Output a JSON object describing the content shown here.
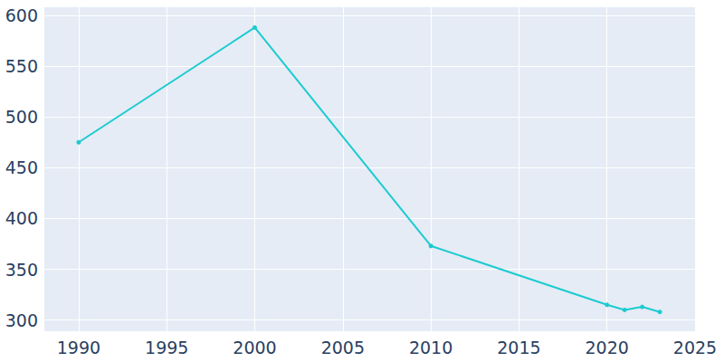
{
  "chart_data": {
    "type": "line",
    "x": [
      1990,
      2000,
      2010,
      2020,
      2021,
      2022,
      2023
    ],
    "values": [
      475,
      588,
      373,
      315,
      310,
      313,
      308
    ],
    "color": "#1ccbd0",
    "marker": "circle",
    "xlim": [
      1988,
      2025
    ],
    "xticks": [
      1990,
      1995,
      2000,
      2005,
      2010,
      2015,
      2020,
      2025
    ],
    "ylim": [
      289,
      608
    ],
    "yticks": [
      300,
      350,
      400,
      450,
      500,
      550,
      600
    ],
    "grid": true
  }
}
